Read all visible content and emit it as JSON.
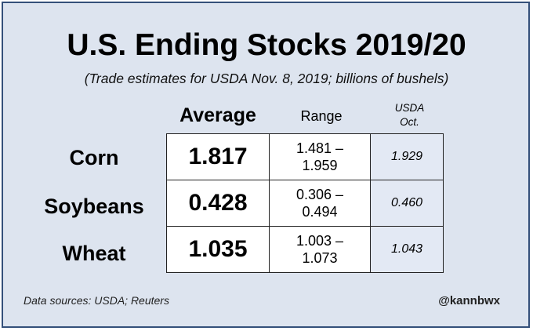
{
  "chart_data": {
    "type": "table",
    "title": "U.S. Ending Stocks 2019/20",
    "subtitle": "(Trade estimates for USDA Nov. 8, 2019; billions of bushels)",
    "columns": [
      "Average",
      "Range",
      "USDA Oct."
    ],
    "column_labels": {
      "average": "Average",
      "range": "Range",
      "usda_line1": "USDA",
      "usda_line2": "Oct."
    },
    "rows": [
      {
        "label": "Corn",
        "average": "1.817",
        "range_low": "1.481 –",
        "range_high": "1.959",
        "usda_oct": "1.929"
      },
      {
        "label": "Soybeans",
        "average": "0.428",
        "range_low": "0.306 –",
        "range_high": "0.494",
        "usda_oct": "0.460"
      },
      {
        "label": "Wheat",
        "average": "1.035",
        "range_low": "1.003 –",
        "range_high": "1.073",
        "usda_oct": "1.043"
      }
    ]
  },
  "footer": {
    "source": "Data sources: USDA; Reuters",
    "handle": "@kannbwx"
  },
  "colors": {
    "background": "#dde4ef",
    "border": "#34507a",
    "usda_cell": "#e3e9f4"
  }
}
